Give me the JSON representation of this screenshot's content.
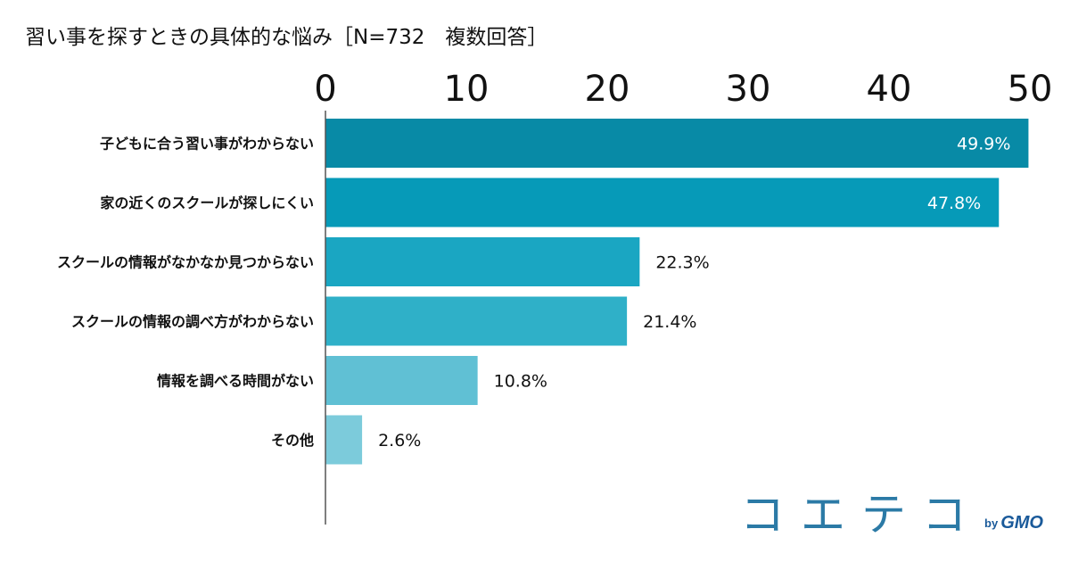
{
  "chart_data": {
    "type": "bar",
    "orientation": "horizontal",
    "title": "習い事を探すときの具体的な悩み［N=732　複数回答］",
    "categories": [
      "子どもに合う習い事がわからない",
      "家の近くのスクールが探しにくい",
      "スクールの情報がなかなか見つからない",
      "スクールの情報の調べ方がわからない",
      "情報を調べる時間がない",
      "その他"
    ],
    "values": [
      49.9,
      47.8,
      22.3,
      21.4,
      10.8,
      2.6
    ],
    "value_labels": [
      "49.9%",
      "47.8%",
      "22.3%",
      "21.4%",
      "10.8%",
      "2.6%"
    ],
    "xlim": [
      0,
      50
    ],
    "x_ticks": [
      "0",
      "10",
      "20",
      "30",
      "40",
      "50"
    ],
    "xlabel": "",
    "ylabel": "",
    "grid": false,
    "axis_position": "top",
    "bar_colors": [
      "#088aa6",
      "#069ab8",
      "#1aa6c2",
      "#2fb0c8",
      "#60c0d4",
      "#7ccbdb"
    ],
    "value_label_colors": [
      "#ffffff",
      "#ffffff",
      "#111111",
      "#111111",
      "#111111",
      "#111111"
    ],
    "value_label_inside": [
      true,
      true,
      false,
      false,
      false,
      false
    ]
  },
  "logo": {
    "main": "コエテコ",
    "by": "by",
    "brand": "GMO"
  },
  "colors": {
    "logo": "#2b7aa6",
    "gmo": "#1a5a9a",
    "axis": "#555555"
  }
}
